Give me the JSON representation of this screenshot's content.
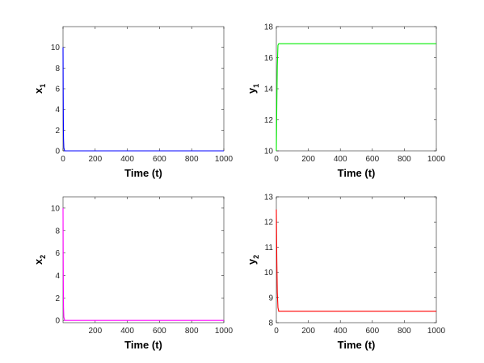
{
  "chart_data": [
    {
      "type": "line",
      "xlabel": "Time (t)",
      "ylabel": "x",
      "ylabel_sub": "1",
      "xlim": [
        0,
        1000
      ],
      "ylim": [
        0,
        12
      ],
      "xticks": [
        0,
        200,
        400,
        600,
        800,
        1000
      ],
      "yticks": [
        0,
        2,
        4,
        6,
        8,
        10
      ],
      "grid": false,
      "color": "#0000ff",
      "series": [
        {
          "x": [
            0,
            1,
            2,
            3,
            5,
            10,
            1000
          ],
          "y": [
            10,
            6,
            3,
            1.2,
            0.3,
            0,
            0
          ]
        }
      ]
    },
    {
      "type": "line",
      "xlabel": "Time (t)",
      "ylabel": "y",
      "ylabel_sub": "1",
      "xlim": [
        0,
        1000
      ],
      "ylim": [
        10,
        18
      ],
      "xticks": [
        0,
        200,
        400,
        600,
        800,
        1000
      ],
      "yticks": [
        10,
        12,
        14,
        16,
        18
      ],
      "grid": false,
      "color": "#00ee00",
      "series": [
        {
          "x": [
            0,
            3,
            6,
            10,
            15,
            1000
          ],
          "y": [
            10,
            13,
            15.5,
            16.8,
            16.9,
            16.9
          ]
        }
      ]
    },
    {
      "type": "line",
      "xlabel": "Time (t)",
      "ylabel": "x",
      "ylabel_sub": "2",
      "xlim": [
        0,
        1000
      ],
      "ylim": [
        -0.2,
        11
      ],
      "xticks": [
        200,
        400,
        600,
        800,
        1000
      ],
      "yticks": [
        0,
        2,
        4,
        6,
        8,
        10
      ],
      "grid": false,
      "color": "#ff00ff",
      "series": [
        {
          "x": [
            0,
            1,
            2,
            3,
            5,
            10,
            1000
          ],
          "y": [
            10,
            6,
            3,
            1.2,
            0.3,
            0,
            0
          ]
        }
      ]
    },
    {
      "type": "line",
      "xlabel": "Time (t)",
      "ylabel": "y",
      "ylabel_sub": "2",
      "xlim": [
        0,
        1000
      ],
      "ylim": [
        8,
        13
      ],
      "xticks": [
        0,
        200,
        400,
        600,
        800,
        1000
      ],
      "yticks": [
        8,
        9,
        10,
        11,
        12,
        13
      ],
      "grid": false,
      "color": "#ff0000",
      "series": [
        {
          "x": [
            0,
            3,
            6,
            10,
            15,
            20,
            1000
          ],
          "y": [
            12.5,
            10.5,
            9.2,
            8.6,
            8.45,
            8.45,
            8.45
          ]
        }
      ]
    }
  ]
}
